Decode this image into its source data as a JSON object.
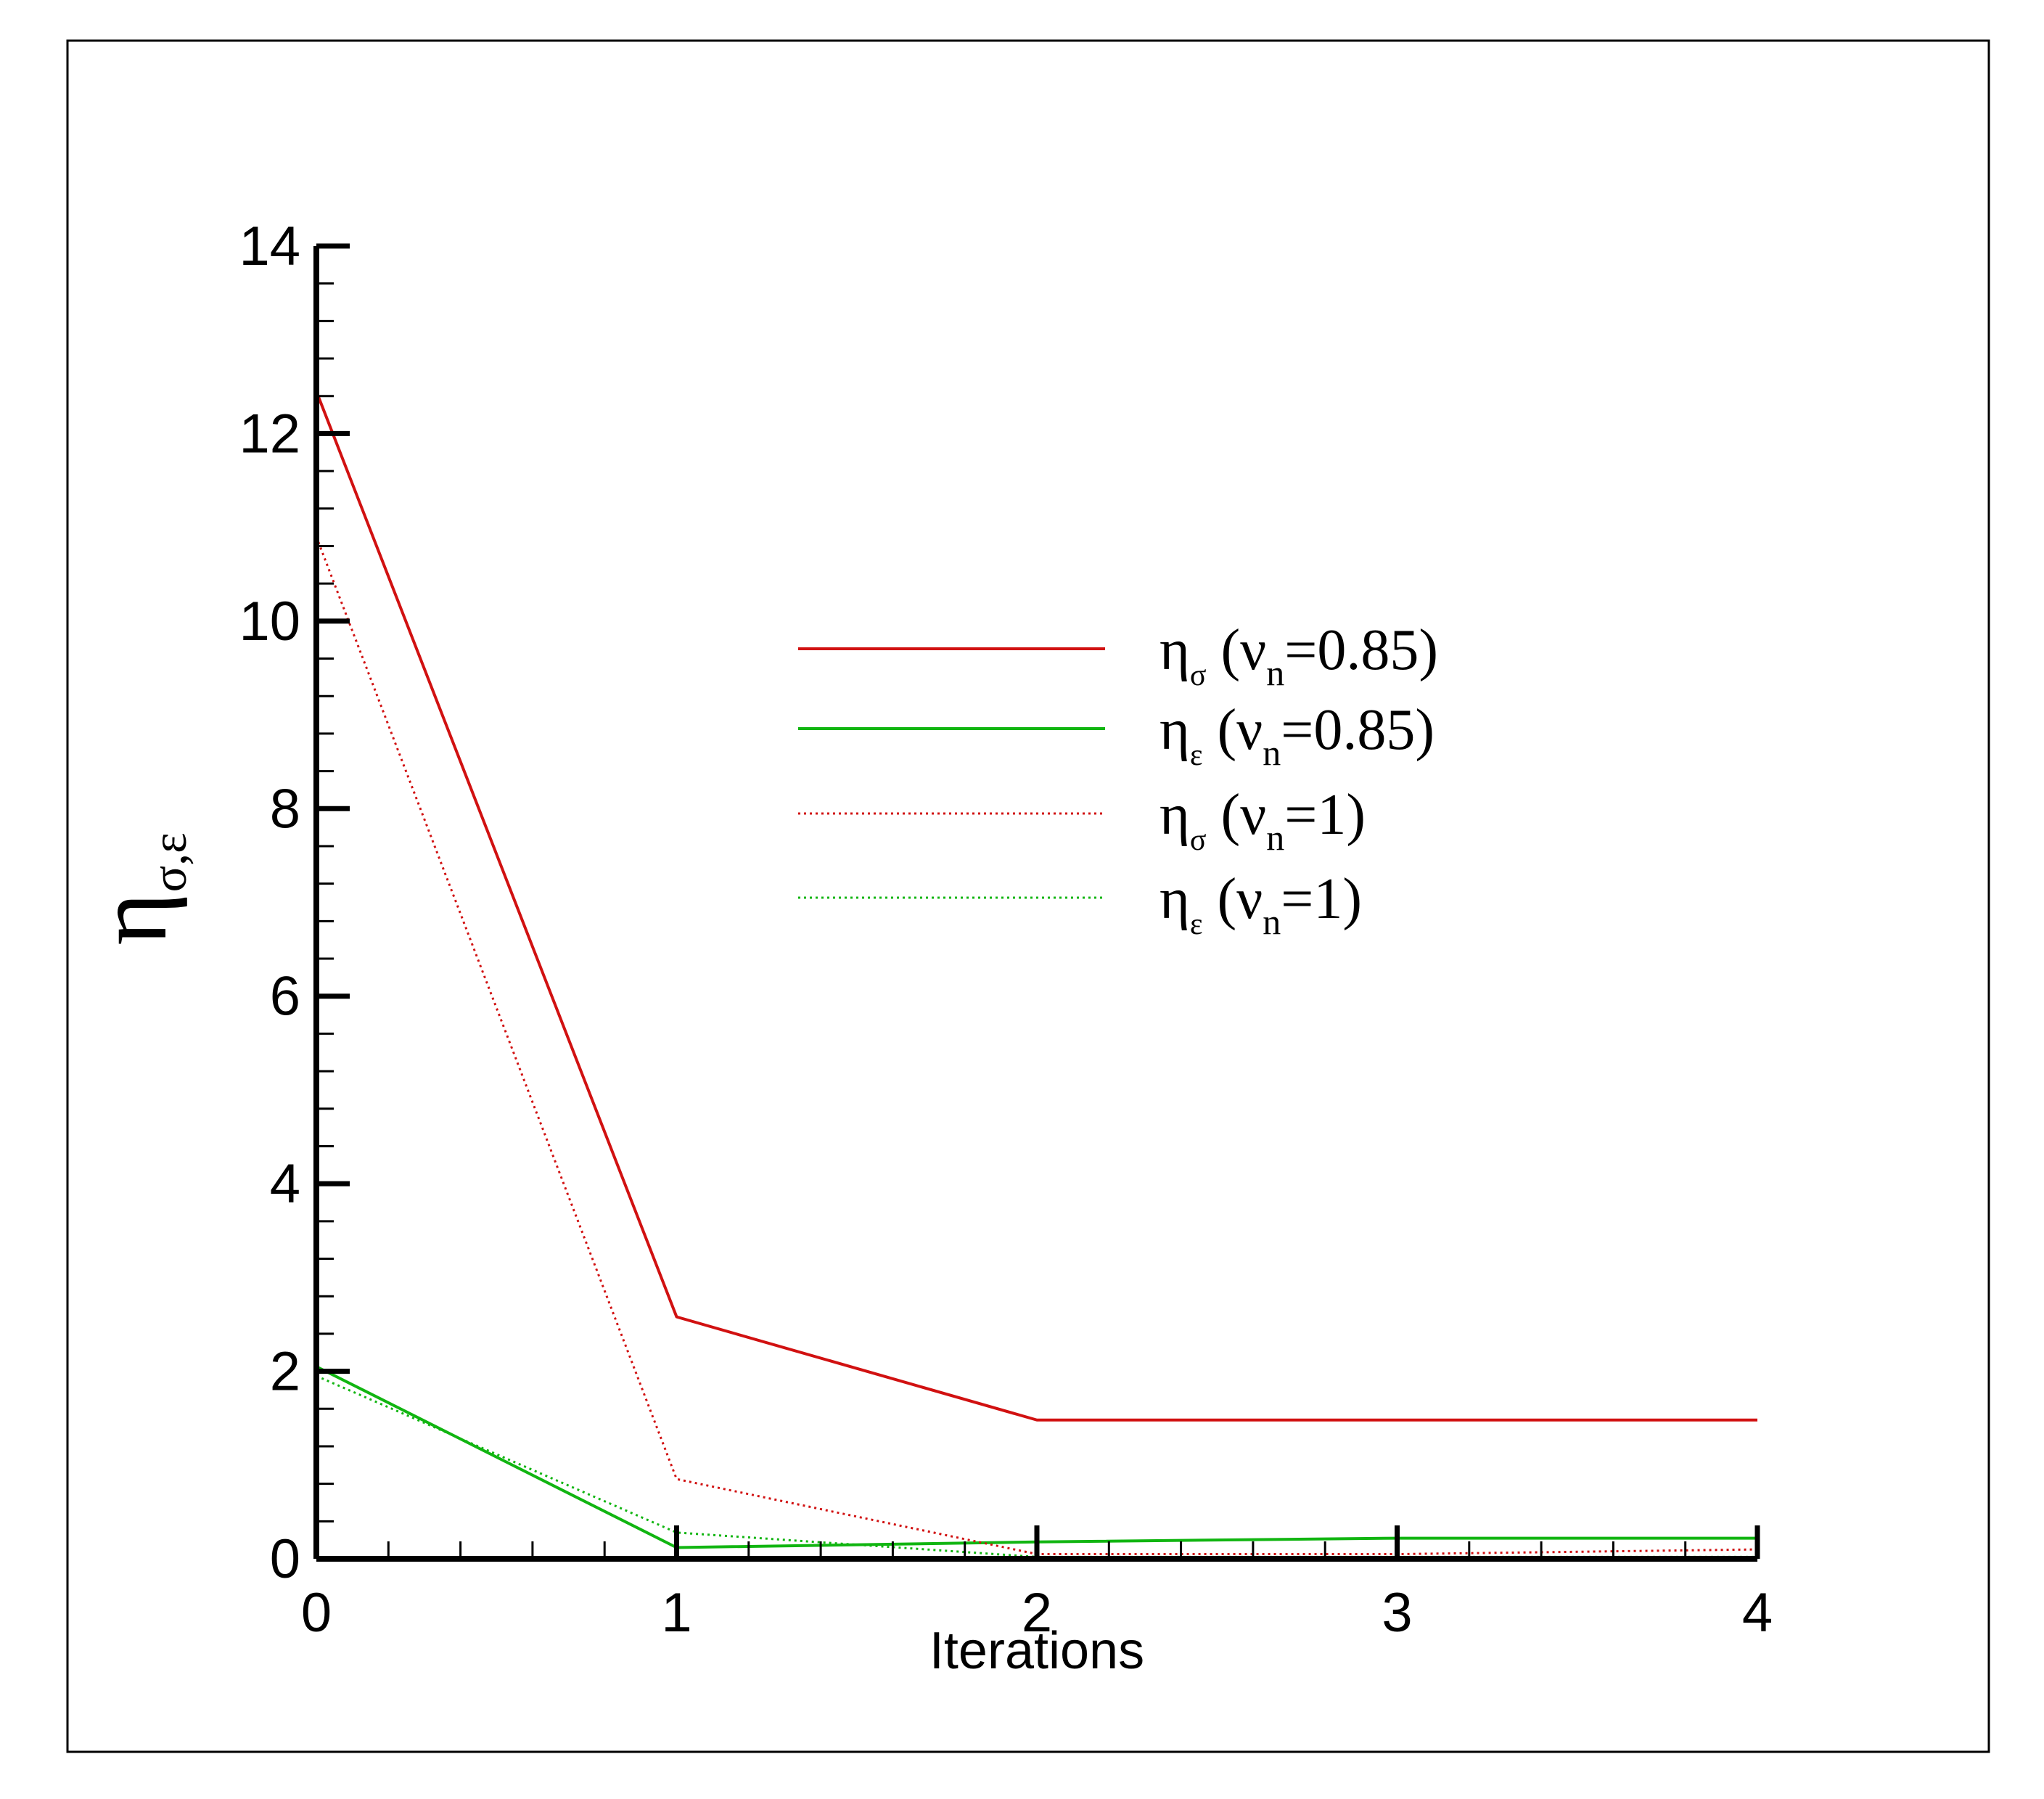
{
  "chart_data": {
    "type": "line",
    "xlabel": "Iterations",
    "ylabel": "η",
    "ylabel_sub": "σ,ε",
    "xlim": [
      0,
      4
    ],
    "ylim": [
      0,
      14
    ],
    "x_ticks": [
      "0",
      "1",
      "2",
      "3",
      "4"
    ],
    "y_ticks": [
      "0",
      "2",
      "4",
      "6",
      "8",
      "10",
      "12",
      "14"
    ],
    "grid": false,
    "legend_position": "center-right",
    "series": [
      {
        "label_main": "η",
        "label_sub": "σ",
        "label_rest": " (ν",
        "label_sub2": "n",
        "label_tail": "=0.85)",
        "color": "#d11111",
        "style": "solid",
        "x": [
          0,
          1,
          2,
          3,
          4
        ],
        "y": [
          12.45,
          2.58,
          1.48,
          1.48,
          1.48
        ]
      },
      {
        "label_main": "η",
        "label_sub": "ε",
        "label_rest": " (ν",
        "label_sub2": "n",
        "label_tail": "=0.85)",
        "color": "#11b511",
        "style": "solid",
        "x": [
          0,
          1,
          2,
          3,
          4
        ],
        "y": [
          2.05,
          0.12,
          0.18,
          0.22,
          0.22
        ]
      },
      {
        "label_main": "η",
        "label_sub": "σ",
        "label_rest": " (ν",
        "label_sub2": "n",
        "label_tail": "=1)",
        "color": "#d11111",
        "style": "dotted",
        "x": [
          0,
          1,
          2,
          3,
          4
        ],
        "y": [
          10.9,
          0.85,
          0.05,
          0.05,
          0.1
        ]
      },
      {
        "label_main": "η",
        "label_sub": "ε",
        "label_rest": " (ν",
        "label_sub2": "n",
        "label_tail": "=1)",
        "color": "#11b511",
        "style": "dotted",
        "x": [
          0,
          1,
          2,
          3,
          4
        ],
        "y": [
          1.95,
          0.28,
          0.02,
          0.02,
          0.02
        ]
      }
    ]
  }
}
